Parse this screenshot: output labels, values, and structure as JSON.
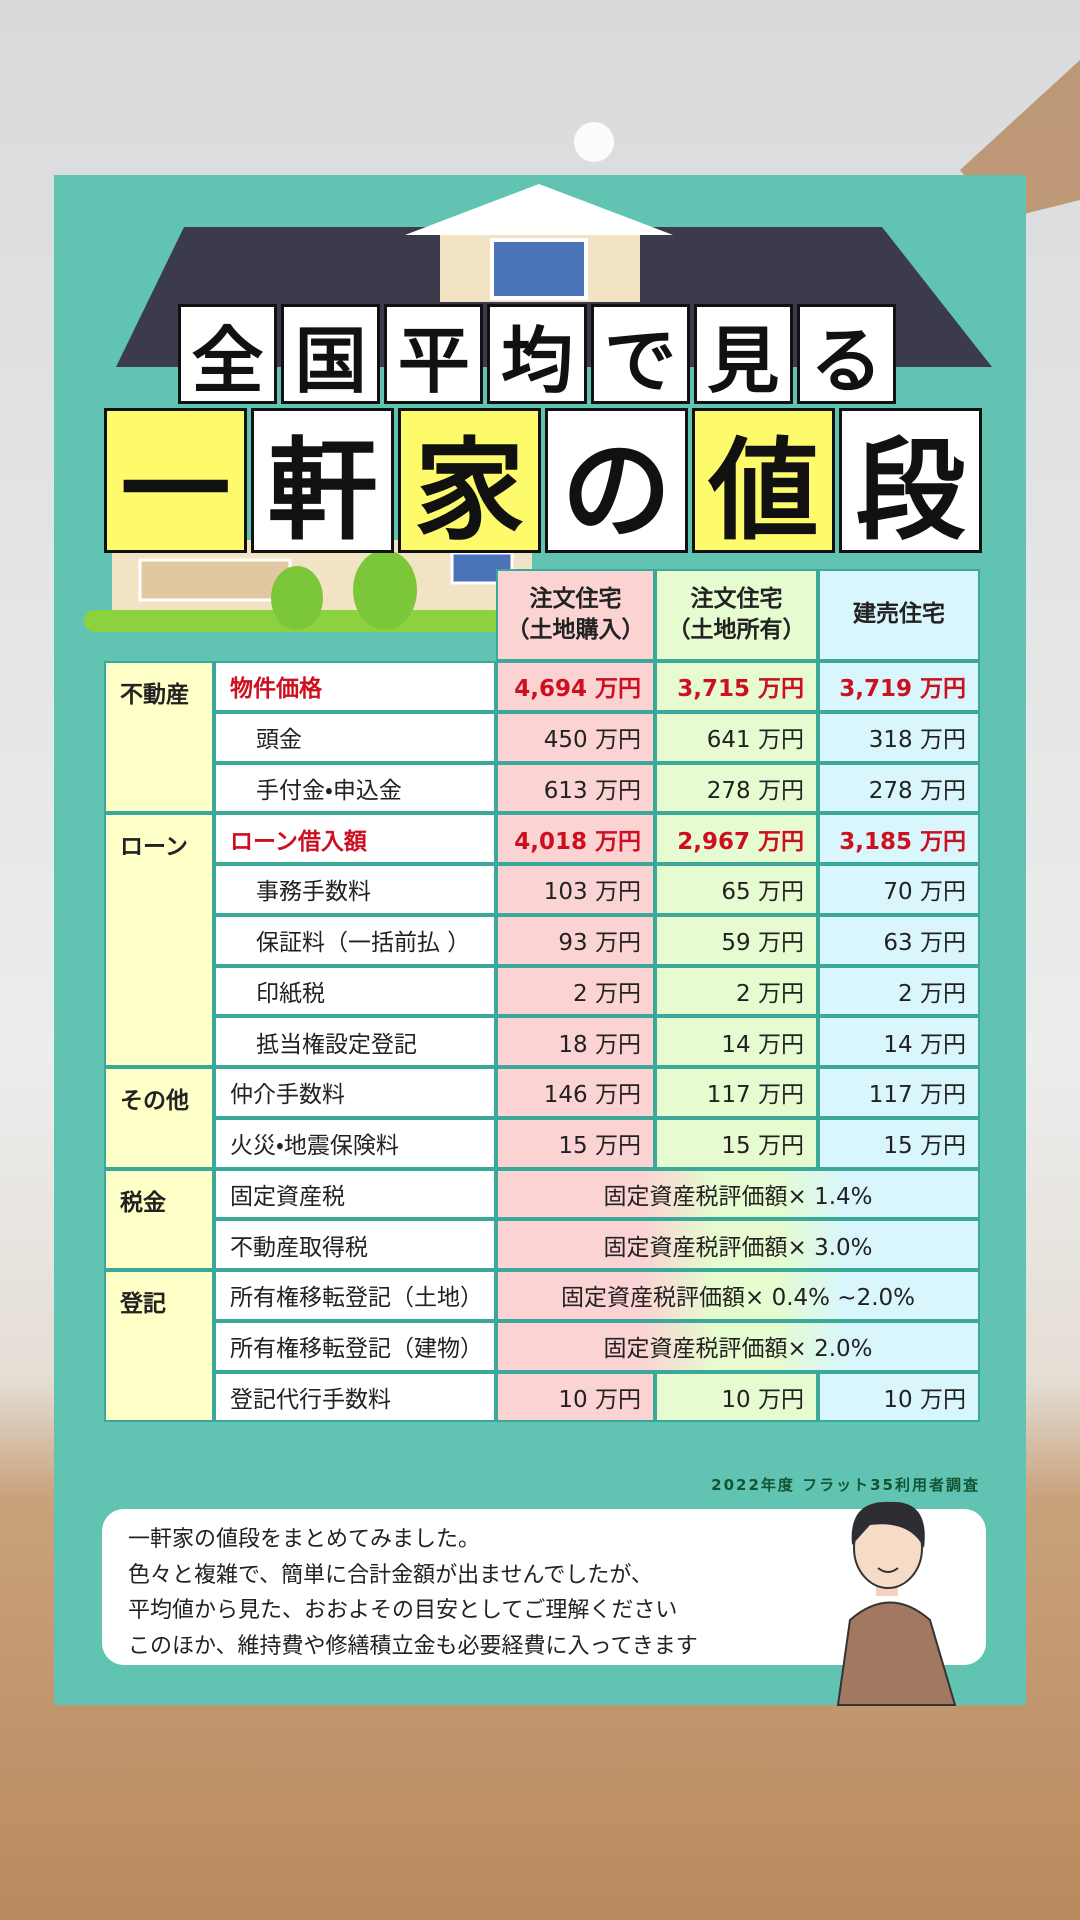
{
  "title": {
    "line1": [
      "全",
      "国",
      "平",
      "均",
      "で",
      "見",
      "る"
    ],
    "line2": [
      "一",
      "軒",
      "家",
      "の",
      "値",
      "段"
    ]
  },
  "table": {
    "headers": [
      [
        "注文住宅",
        "（土地購入）"
      ],
      [
        "注文住宅",
        "（土地所有）"
      ],
      [
        "建売住宅"
      ]
    ],
    "groups": [
      {
        "name": "不動産",
        "rows": [
          {
            "label": "物件価格",
            "emphasis": true,
            "indent": false,
            "values": [
              "4,694 万円",
              "3,715 万円",
              "3,719 万円"
            ]
          },
          {
            "label": "頭金",
            "emphasis": false,
            "indent": true,
            "values": [
              "450 万円",
              "641 万円",
              "318 万円"
            ]
          },
          {
            "label": "手付金・申込金",
            "emphasis": false,
            "indent": true,
            "values": [
              "613 万円",
              "278 万円",
              "278 万円"
            ]
          }
        ]
      },
      {
        "name": "ローン",
        "rows": [
          {
            "label": "ローン借入額",
            "emphasis": true,
            "indent": false,
            "values": [
              "4,018 万円",
              "2,967 万円",
              "3,185 万円"
            ]
          },
          {
            "label": "事務手数料",
            "emphasis": false,
            "indent": true,
            "values": [
              "103 万円",
              "65 万円",
              "70 万円"
            ]
          },
          {
            "label": "保証料（一括前払 ）",
            "emphasis": false,
            "indent": true,
            "values": [
              "93 万円",
              "59 万円",
              "63 万円"
            ]
          },
          {
            "label": "印紙税",
            "emphasis": false,
            "indent": true,
            "values": [
              "2 万円",
              "2 万円",
              "2 万円"
            ]
          },
          {
            "label": "抵当権設定登記",
            "emphasis": false,
            "indent": true,
            "values": [
              "18 万円",
              "14 万円",
              "14 万円"
            ]
          }
        ]
      },
      {
        "name": "その他",
        "rows": [
          {
            "label": "仲介手数料",
            "emphasis": false,
            "indent": false,
            "values": [
              "146 万円",
              "117 万円",
              "117 万円"
            ]
          },
          {
            "label": "火災・地震保険料",
            "emphasis": false,
            "indent": false,
            "values": [
              "15 万円",
              "15 万円",
              "15 万円"
            ]
          }
        ]
      },
      {
        "name": "税金",
        "rows": [
          {
            "label": "固定資産税",
            "emphasis": false,
            "indent": false,
            "merged": "固定資産税評価額× 1.4%"
          },
          {
            "label": "不動産取得税",
            "emphasis": false,
            "indent": false,
            "merged": "固定資産税評価額× 3.0%"
          }
        ]
      },
      {
        "name": "登記",
        "rows": [
          {
            "label": "所有権移転登記（土地）",
            "emphasis": false,
            "indent": false,
            "merged": "固定資産税評価額× 0.4% ~2.0%"
          },
          {
            "label": "所有権移転登記（建物）",
            "emphasis": false,
            "indent": false,
            "merged": "固定資産税評価額× 2.0%"
          },
          {
            "label": "登記代行手数料",
            "emphasis": false,
            "indent": false,
            "values": [
              "10 万円",
              "10 万円",
              "10 万円"
            ]
          }
        ]
      }
    ]
  },
  "source": "2022年度 フラット35利用者調査",
  "note": {
    "lines": [
      "一軒家の値段をまとめてみました。",
      "色々と複雑で、簡単に合計金額が出ませんでしたが、",
      "平均値から見た、おおよその目安としてご理解ください",
      "このほか、維持費や修繕積立金も必要経費に入ってきます"
    ]
  }
}
